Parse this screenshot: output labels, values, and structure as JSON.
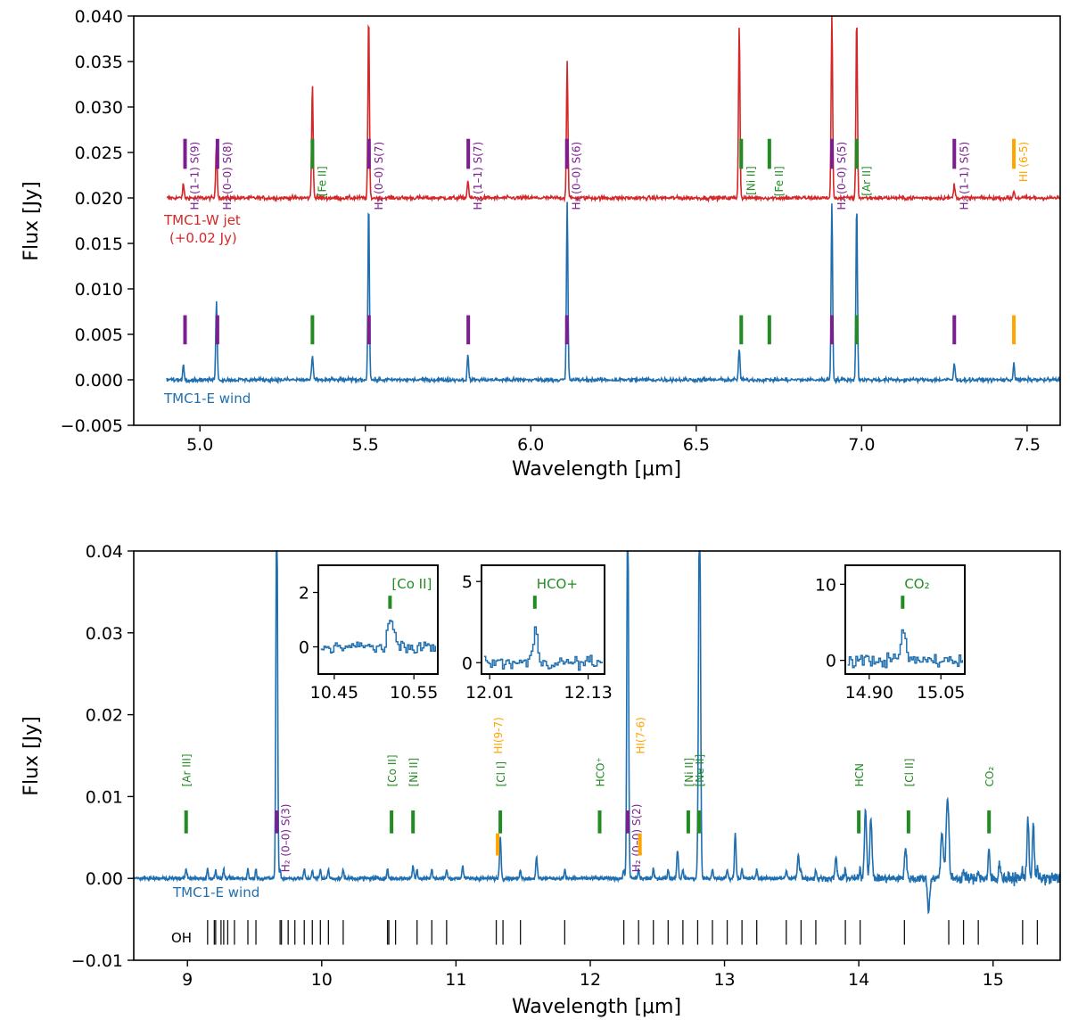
{
  "colors": {
    "jet": "#d62728",
    "wind": "#1f6fb0",
    "h2": "#7b1e8f",
    "ion": "#228b22",
    "hi": "#ffa500",
    "oh": "#000000"
  },
  "chart_data": [
    {
      "type": "line",
      "xlabel": "Wavelength [μm]",
      "ylabel": "Flux [Jy]",
      "xlim": [
        4.8,
        7.6
      ],
      "ylim": [
        -0.005,
        0.04
      ],
      "xticks": [
        "5.0",
        "5.5",
        "6.0",
        "6.5",
        "7.0",
        "7.5"
      ],
      "yticks": [
        "−0.005",
        "0.000",
        "0.005",
        "0.010",
        "0.015",
        "0.020",
        "0.025",
        "0.030",
        "0.035",
        "0.040"
      ],
      "series": [
        {
          "name": "TMC1-W jet",
          "note": "(+0.02 Jy)",
          "offset": 0.02,
          "color": "red",
          "x_range": [
            4.9,
            7.6
          ],
          "lines": [
            {
              "x": 4.95,
              "y": 0.0015
            },
            {
              "x": 5.05,
              "y": 0.006
            },
            {
              "x": 5.34,
              "y": 0.0125
            },
            {
              "x": 5.51,
              "y": 0.02
            },
            {
              "x": 5.81,
              "y": 0.002
            },
            {
              "x": 6.11,
              "y": 0.015
            },
            {
              "x": 6.63,
              "y": 0.019
            },
            {
              "x": 6.91,
              "y": 0.02
            },
            {
              "x": 6.985,
              "y": 0.02
            },
            {
              "x": 7.28,
              "y": 0.0015
            },
            {
              "x": 7.46,
              "y": 0.0008
            }
          ]
        },
        {
          "name": "TMC1-E wind",
          "color": "blue",
          "x_range": [
            4.9,
            7.6
          ],
          "lines": [
            {
              "x": 4.95,
              "y": 0.0016
            },
            {
              "x": 5.05,
              "y": 0.0087
            },
            {
              "x": 5.34,
              "y": 0.0027
            },
            {
              "x": 5.51,
              "y": 0.0195
            },
            {
              "x": 5.81,
              "y": 0.0027
            },
            {
              "x": 6.11,
              "y": 0.0195
            },
            {
              "x": 6.63,
              "y": 0.0035
            },
            {
              "x": 6.91,
              "y": 0.0195
            },
            {
              "x": 6.985,
              "y": 0.0195
            },
            {
              "x": 7.28,
              "y": 0.0018
            },
            {
              "x": 7.46,
              "y": 0.0018
            }
          ]
        }
      ],
      "markers": [
        {
          "x": 4.955,
          "kind": "h2",
          "label": "H₂ (1–1) S(9)"
        },
        {
          "x": 5.053,
          "kind": "h2",
          "label": "H₂ (0–0) S(8)"
        },
        {
          "x": 5.34,
          "kind": "ion",
          "label": "[Fe II]"
        },
        {
          "x": 5.511,
          "kind": "h2",
          "label": "H₂ (0–0) S(7)"
        },
        {
          "x": 5.811,
          "kind": "h2",
          "label": "H₂ (1–1) S(7)"
        },
        {
          "x": 6.109,
          "kind": "h2",
          "label": "H₂ (0–0) S(6)"
        },
        {
          "x": 6.636,
          "kind": "ion",
          "label": "[Ni II]"
        },
        {
          "x": 6.721,
          "kind": "ion",
          "label": "[Fe II]"
        },
        {
          "x": 6.91,
          "kind": "h2",
          "label": "H₂ (0–0) S(5)"
        },
        {
          "x": 6.985,
          "kind": "ion",
          "label": "[Ar II]"
        },
        {
          "x": 7.28,
          "kind": "h2",
          "label": "H₂ (1–1) S(5)"
        },
        {
          "x": 7.46,
          "kind": "hi",
          "label": "HI (6-5)"
        }
      ]
    },
    {
      "type": "line",
      "xlabel": "Wavelength [μm]",
      "ylabel": "Flux [Jy]",
      "xlim": [
        8.6,
        15.5
      ],
      "ylim": [
        -0.01,
        0.04
      ],
      "xticks": [
        "9",
        "10",
        "11",
        "12",
        "13",
        "14",
        "15"
      ],
      "yticks": [
        "−0.01",
        "0.00",
        "0.01",
        "0.02",
        "0.03",
        "0.04"
      ],
      "series": [
        {
          "name": "TMC1-E wind",
          "color": "blue",
          "x_range": [
            8.6,
            15.5
          ]
        }
      ],
      "oh_label": "OH",
      "markers": [
        {
          "x": 8.99,
          "kind": "ion",
          "label": "[Ar III]"
        },
        {
          "x": 9.665,
          "kind": "h2",
          "label": "H₂ (0–0) S(3)"
        },
        {
          "x": 10.52,
          "kind": "ion",
          "label": "[Co II]"
        },
        {
          "x": 10.68,
          "kind": "ion",
          "label": "[Ni II]"
        },
        {
          "x": 11.31,
          "kind": "hi",
          "label": "HI(9-7)"
        },
        {
          "x": 11.33,
          "kind": "ion",
          "label": "[Cl I]"
        },
        {
          "x": 12.07,
          "kind": "ion",
          "label": "HCO⁺"
        },
        {
          "x": 12.279,
          "kind": "h2",
          "label": "H₂ (0–0) S(2)"
        },
        {
          "x": 12.37,
          "kind": "hi",
          "label": "HI(7-6)"
        },
        {
          "x": 12.73,
          "kind": "ion",
          "label": "[Ni II]"
        },
        {
          "x": 12.81,
          "kind": "ion",
          "label": "[Ne II]"
        },
        {
          "x": 14.0,
          "kind": "ion",
          "label": "HCN"
        },
        {
          "x": 14.37,
          "kind": "ion",
          "label": "[Cl II]"
        },
        {
          "x": 14.97,
          "kind": "ion",
          "label": "CO₂"
        }
      ],
      "insets": [
        {
          "xlim": [
            10.43,
            10.58
          ],
          "ylim": [
            -1,
            3
          ],
          "xticks": [
            "10.45",
            "10.55"
          ],
          "yticks": [
            "0",
            "2"
          ],
          "label": "[Co II]",
          "line_x": 10.52
        },
        {
          "xlim": [
            12.0,
            12.15
          ],
          "ylim": [
            -0.7,
            6
          ],
          "xticks": [
            "12.01",
            "12.13"
          ],
          "yticks": [
            "0",
            "5"
          ],
          "label": "HCO+",
          "line_x": 12.065
        },
        {
          "xlim": [
            14.85,
            15.1
          ],
          "ylim": [
            -1.8,
            12.5
          ],
          "xticks": [
            "14.90",
            "15.05"
          ],
          "yticks": [
            "0",
            "10"
          ],
          "label": "CO₂",
          "line_x": 14.97
        }
      ]
    }
  ]
}
